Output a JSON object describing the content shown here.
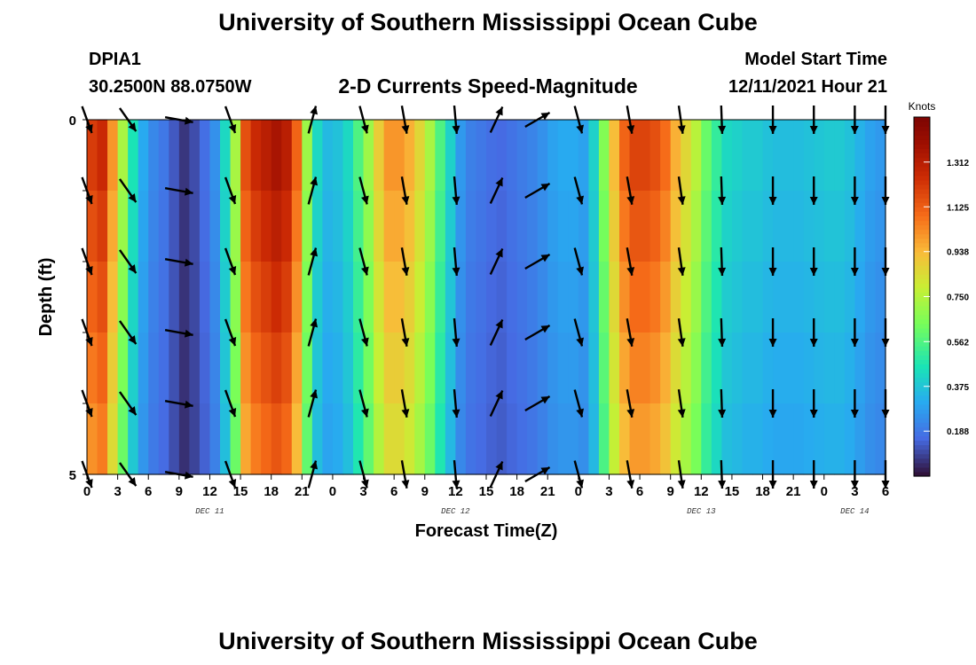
{
  "header": {
    "title": "University of Southern Mississippi Ocean Cube",
    "station_id": "DPIA1",
    "coordinates": "30.2500N  88.0750W",
    "subtitle": "2-D Currents Speed-Magnitude",
    "model_start_label": "Model Start Time",
    "model_start_value": "12/11/2021 Hour 21"
  },
  "footer": {
    "title": "University of Southern Mississippi Ocean Cube"
  },
  "chart_data": {
    "type": "heatmap",
    "title": "2-D Currents Speed-Magnitude",
    "xlabel": "Forecast Time(Z)",
    "ylabel": "Depth (ft)",
    "ylim": [
      0,
      5
    ],
    "y_ticks": [
      "0",
      "5"
    ],
    "x_tick_labels": [
      "0",
      "3",
      "6",
      "9",
      "12",
      "15",
      "18",
      "21",
      "0",
      "3",
      "6",
      "9",
      "12",
      "15",
      "18",
      "21",
      "0",
      "3",
      "6",
      "9",
      "12",
      "15",
      "18",
      "21",
      "0",
      "3",
      "6"
    ],
    "date_labels": [
      {
        "label": "DEC 11",
        "hour": 12
      },
      {
        "label": "DEC 12",
        "hour": 36
      },
      {
        "label": "DEC 13",
        "hour": 60
      },
      {
        "label": "DEC 14",
        "hour": 75
      }
    ],
    "x_start_hour": 0,
    "x_end_hour": 78,
    "hours": [
      0,
      1,
      2,
      3,
      4,
      5,
      6,
      7,
      8,
      9,
      10,
      11,
      12,
      13,
      14,
      15,
      16,
      17,
      18,
      19,
      20,
      21,
      22,
      23,
      24,
      25,
      26,
      27,
      28,
      29,
      30,
      31,
      32,
      33,
      34,
      35,
      36,
      37,
      38,
      39,
      40,
      41,
      42,
      43,
      44,
      45,
      46,
      47,
      48,
      49,
      50,
      51,
      52,
      53,
      54,
      55,
      56,
      57,
      58,
      59,
      60,
      61,
      62,
      63,
      64,
      65,
      66,
      67,
      68,
      69,
      70,
      71,
      72,
      73,
      74,
      75,
      76,
      77
    ],
    "speed_knots_by_hour": [
      1.2,
      1.25,
      1.0,
      0.72,
      0.45,
      0.3,
      0.22,
      0.18,
      0.12,
      0.06,
      0.1,
      0.16,
      0.24,
      0.42,
      0.72,
      1.15,
      1.25,
      1.3,
      1.35,
      1.3,
      1.1,
      0.7,
      0.42,
      0.34,
      0.36,
      0.42,
      0.55,
      0.7,
      0.88,
      1.0,
      1.0,
      0.95,
      0.85,
      0.72,
      0.55,
      0.4,
      0.26,
      0.2,
      0.18,
      0.16,
      0.15,
      0.17,
      0.19,
      0.21,
      0.24,
      0.28,
      0.3,
      0.3,
      0.28,
      0.4,
      0.65,
      0.92,
      1.1,
      1.18,
      1.18,
      1.15,
      1.08,
      0.95,
      0.85,
      0.75,
      0.6,
      0.5,
      0.42,
      0.4,
      0.38,
      0.38,
      0.36,
      0.35,
      0.35,
      0.35,
      0.36,
      0.37,
      0.38,
      0.38,
      0.36,
      0.32,
      0.28,
      0.26
    ],
    "depth_rows": 5,
    "colorbar": {
      "label": "Knots",
      "min": 0.0,
      "max": 1.5,
      "tick_values": [
        0.188,
        0.375,
        0.562,
        0.75,
        0.938,
        1.125,
        1.312
      ],
      "tick_labels": [
        "0.188",
        "0.375",
        "0.562",
        "0.750",
        "0.938",
        "1.125",
        "1.312"
      ]
    },
    "vector_hours": [
      0,
      4,
      9,
      14,
      22,
      27,
      31,
      36,
      40,
      44,
      48,
      53,
      58,
      62,
      67,
      71,
      75,
      78
    ],
    "vector_angles_deg": [
      160,
      145,
      100,
      160,
      15,
      165,
      170,
      175,
      25,
      60,
      165,
      170,
      172,
      178,
      180,
      180,
      180,
      180
    ],
    "vector_depths": [
      0.0,
      1.0,
      2.0,
      3.0,
      4.0,
      5.0
    ]
  }
}
